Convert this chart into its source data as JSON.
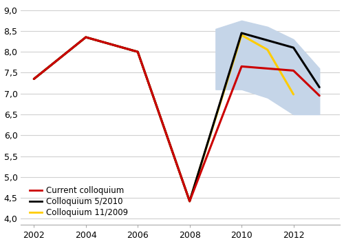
{
  "red_x": [
    2002,
    2004,
    2006,
    2008,
    2010,
    2012,
    2013
  ],
  "red_y": [
    7.35,
    8.35,
    8.0,
    4.42,
    7.65,
    7.55,
    6.95
  ],
  "black_x": [
    2002,
    2004,
    2006,
    2008,
    2010,
    2012,
    2013
  ],
  "black_y": [
    7.35,
    8.35,
    8.0,
    4.42,
    8.45,
    8.1,
    7.15
  ],
  "yellow_x": [
    2002,
    2004,
    2006,
    2008,
    2010,
    2011,
    2012
  ],
  "yellow_y": [
    7.35,
    8.35,
    8.0,
    4.42,
    8.4,
    8.05,
    6.98
  ],
  "shade_x": [
    2009,
    2010,
    2011,
    2012,
    2013
  ],
  "shade_upper": [
    8.55,
    8.75,
    8.6,
    8.3,
    7.6
  ],
  "shade_lower": [
    7.1,
    7.1,
    6.9,
    6.5,
    6.5
  ],
  "red_color": "#cc0000",
  "black_color": "#000000",
  "yellow_color": "#ffcc00",
  "shade_color": "#c5d5e8",
  "legend_labels": [
    "Current colloquium",
    "Colloquium 5/2010",
    "Colloquium 11/2009"
  ],
  "yticks": [
    4.0,
    4.5,
    5.0,
    5.5,
    6.0,
    6.5,
    7.0,
    7.5,
    8.0,
    8.5,
    9.0
  ],
  "xticks": [
    2002,
    2004,
    2006,
    2008,
    2010,
    2012
  ],
  "xlim": [
    2001.5,
    2013.8
  ],
  "ylim": [
    3.85,
    9.15
  ],
  "grid_color": "#d0d0d0",
  "bg_color": "#ffffff"
}
